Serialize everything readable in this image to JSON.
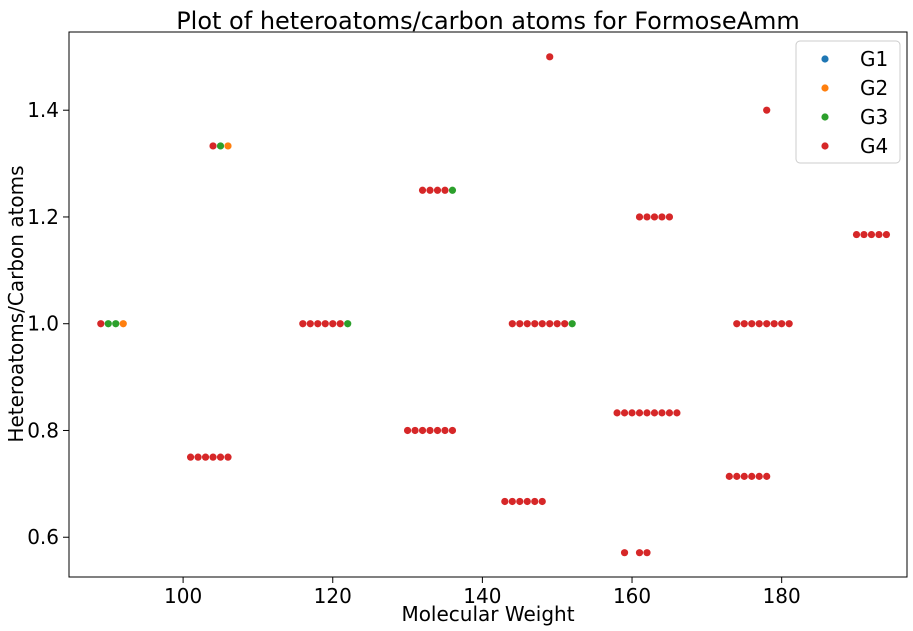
{
  "chart_data": {
    "type": "scatter",
    "title": "Plot of heteroatoms/carbon atoms for FormoseAmm",
    "xlabel": "Molecular Weight",
    "ylabel": "Heteroatoms/Carbon atoms",
    "xlim": [
      84.75,
      196.75
    ],
    "ylim": [
      0.5255,
      1.5465
    ],
    "xticks": [
      100,
      120,
      140,
      160,
      180
    ],
    "yticks": [
      0.6,
      0.8,
      1.0,
      1.2,
      1.4
    ],
    "xtick_labels": [
      "100",
      "120",
      "140",
      "160",
      "180"
    ],
    "ytick_labels": [
      "0.6",
      "0.8",
      "1.0",
      "1.2",
      "1.4"
    ],
    "grid": false,
    "legend_position": "top-right",
    "series": [
      {
        "name": "G1",
        "color": "#1f77b4",
        "points": []
      },
      {
        "name": "G2",
        "color": "#ff7f0e",
        "points": [
          [
            92,
            1.0
          ],
          [
            106,
            1.333
          ]
        ]
      },
      {
        "name": "G3",
        "color": "#2ca02c",
        "points": [
          [
            90,
            1.0
          ],
          [
            91,
            1.0
          ],
          [
            105,
            1.333
          ],
          [
            122,
            1.0
          ],
          [
            136,
            1.25
          ],
          [
            152,
            1.0
          ]
        ]
      },
      {
        "name": "G4",
        "color": "#d62728",
        "points": [
          [
            89,
            1.0
          ],
          [
            104,
            1.333
          ],
          [
            149,
            1.5
          ],
          [
            178,
            1.4
          ],
          [
            132,
            1.25
          ],
          [
            133,
            1.25
          ],
          [
            134,
            1.25
          ],
          [
            135,
            1.25
          ],
          [
            161,
            1.2
          ],
          [
            162,
            1.2
          ],
          [
            163,
            1.2
          ],
          [
            164,
            1.2
          ],
          [
            165,
            1.2
          ],
          [
            190,
            1.167
          ],
          [
            191,
            1.167
          ],
          [
            192,
            1.167
          ],
          [
            193,
            1.167
          ],
          [
            194,
            1.167
          ],
          [
            116,
            1.0
          ],
          [
            117,
            1.0
          ],
          [
            118,
            1.0
          ],
          [
            119,
            1.0
          ],
          [
            120,
            1.0
          ],
          [
            121,
            1.0
          ],
          [
            144,
            1.0
          ],
          [
            145,
            1.0
          ],
          [
            146,
            1.0
          ],
          [
            147,
            1.0
          ],
          [
            148,
            1.0
          ],
          [
            149,
            1.0
          ],
          [
            150,
            1.0
          ],
          [
            151,
            1.0
          ],
          [
            174,
            1.0
          ],
          [
            175,
            1.0
          ],
          [
            176,
            1.0
          ],
          [
            177,
            1.0
          ],
          [
            178,
            1.0
          ],
          [
            179,
            1.0
          ],
          [
            180,
            1.0
          ],
          [
            181,
            1.0
          ],
          [
            158,
            0.833
          ],
          [
            159,
            0.833
          ],
          [
            160,
            0.833
          ],
          [
            161,
            0.833
          ],
          [
            162,
            0.833
          ],
          [
            163,
            0.833
          ],
          [
            164,
            0.833
          ],
          [
            165,
            0.833
          ],
          [
            166,
            0.833
          ],
          [
            130,
            0.8
          ],
          [
            131,
            0.8
          ],
          [
            132,
            0.8
          ],
          [
            133,
            0.8
          ],
          [
            134,
            0.8
          ],
          [
            135,
            0.8
          ],
          [
            136,
            0.8
          ],
          [
            101,
            0.75
          ],
          [
            102,
            0.75
          ],
          [
            103,
            0.75
          ],
          [
            104,
            0.75
          ],
          [
            105,
            0.75
          ],
          [
            106,
            0.75
          ],
          [
            173,
            0.714
          ],
          [
            174,
            0.714
          ],
          [
            175,
            0.714
          ],
          [
            176,
            0.714
          ],
          [
            177,
            0.714
          ],
          [
            178,
            0.714
          ],
          [
            143,
            0.667
          ],
          [
            144,
            0.667
          ],
          [
            145,
            0.667
          ],
          [
            146,
            0.667
          ],
          [
            147,
            0.667
          ],
          [
            148,
            0.667
          ],
          [
            159,
            0.571
          ],
          [
            161,
            0.571
          ],
          [
            162,
            0.571
          ]
        ]
      }
    ]
  }
}
